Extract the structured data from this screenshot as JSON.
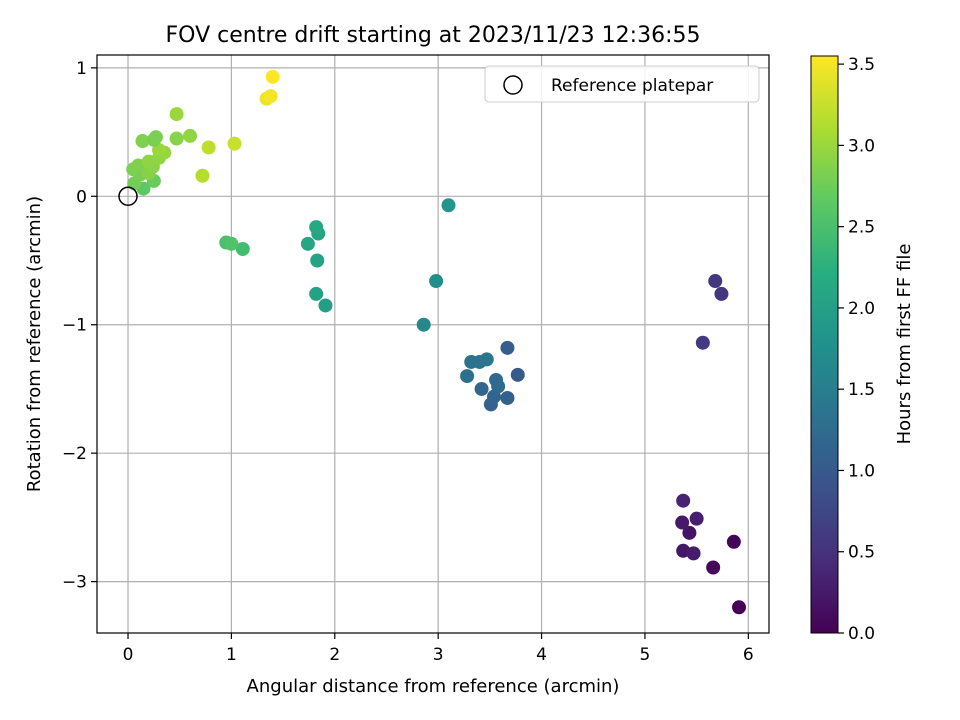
{
  "chart_data": {
    "type": "scatter",
    "title": "FOV centre drift starting at 2023/11/23 12:36:55",
    "xlabel": "Angular distance from reference (arcmin)",
    "ylabel": "Rotation from reference (arcmin)",
    "xlim": [
      -0.3,
      6.2
    ],
    "ylim": [
      -3.4,
      1.1
    ],
    "xticks": [
      0,
      1,
      2,
      3,
      4,
      5,
      6
    ],
    "yticks": [
      -3,
      -2,
      -1,
      0,
      1
    ],
    "xtick_labels": [
      "0",
      "1",
      "2",
      "3",
      "4",
      "5",
      "6"
    ],
    "ytick_labels": [
      "−3",
      "−2",
      "−1",
      "0",
      "1"
    ],
    "grid": true,
    "legend": {
      "label": "Reference platepar",
      "placement": "top-right"
    },
    "reference_point": {
      "x": 0,
      "y": 0
    },
    "colorbar": {
      "label": "Hours from first FF file",
      "colormap": "viridis",
      "range": [
        0,
        3.55
      ],
      "ticks": [
        0,
        0.5,
        1,
        1.5,
        2,
        2.5,
        3,
        3.5
      ],
      "tick_labels": [
        "0.0",
        "0.5",
        "1.0",
        "1.5",
        "2.0",
        "2.5",
        "3.0",
        "3.5"
      ]
    },
    "points": [
      {
        "x": 5.91,
        "y": -3.2,
        "c": 0.02
      },
      {
        "x": 5.66,
        "y": -2.89,
        "c": 0.08
      },
      {
        "x": 5.86,
        "y": -2.69,
        "c": 0.05
      },
      {
        "x": 5.37,
        "y": -2.76,
        "c": 0.22
      },
      {
        "x": 5.47,
        "y": -2.78,
        "c": 0.28
      },
      {
        "x": 5.43,
        "y": -2.62,
        "c": 0.18
      },
      {
        "x": 5.36,
        "y": -2.54,
        "c": 0.25
      },
      {
        "x": 5.5,
        "y": -2.51,
        "c": 0.3
      },
      {
        "x": 5.37,
        "y": -2.37,
        "c": 0.35
      },
      {
        "x": 5.56,
        "y": -1.14,
        "c": 0.6
      },
      {
        "x": 5.74,
        "y": -0.76,
        "c": 0.55
      },
      {
        "x": 5.68,
        "y": -0.66,
        "c": 0.58
      },
      {
        "x": 3.67,
        "y": -1.18,
        "c": 1.05
      },
      {
        "x": 3.77,
        "y": -1.39,
        "c": 1.0
      },
      {
        "x": 3.67,
        "y": -1.57,
        "c": 1.08
      },
      {
        "x": 3.51,
        "y": -1.62,
        "c": 1.12
      },
      {
        "x": 3.54,
        "y": -1.56,
        "c": 1.15
      },
      {
        "x": 3.42,
        "y": -1.5,
        "c": 1.18
      },
      {
        "x": 3.56,
        "y": -1.43,
        "c": 1.2
      },
      {
        "x": 3.58,
        "y": -1.48,
        "c": 1.22
      },
      {
        "x": 3.28,
        "y": -1.4,
        "c": 1.3
      },
      {
        "x": 3.32,
        "y": -1.29,
        "c": 1.32
      },
      {
        "x": 3.4,
        "y": -1.29,
        "c": 1.35
      },
      {
        "x": 3.47,
        "y": -1.27,
        "c": 1.38
      },
      {
        "x": 2.86,
        "y": -1.0,
        "c": 1.65
      },
      {
        "x": 2.98,
        "y": -0.66,
        "c": 1.75
      },
      {
        "x": 3.1,
        "y": -0.07,
        "c": 1.85
      },
      {
        "x": 1.91,
        "y": -0.85,
        "c": 1.98
      },
      {
        "x": 1.82,
        "y": -0.76,
        "c": 2.02
      },
      {
        "x": 1.83,
        "y": -0.5,
        "c": 2.05
      },
      {
        "x": 1.74,
        "y": -0.37,
        "c": 2.1
      },
      {
        "x": 1.84,
        "y": -0.29,
        "c": 2.08
      },
      {
        "x": 1.82,
        "y": -0.24,
        "c": 2.12
      },
      {
        "x": 1.11,
        "y": -0.41,
        "c": 2.45
      },
      {
        "x": 0.95,
        "y": -0.36,
        "c": 2.5
      },
      {
        "x": 1.0,
        "y": -0.37,
        "c": 2.55
      },
      {
        "x": 0.15,
        "y": 0.06,
        "c": 2.65
      },
      {
        "x": 0.25,
        "y": 0.12,
        "c": 2.72
      },
      {
        "x": 0.06,
        "y": 0.1,
        "c": 2.78
      },
      {
        "x": 0.12,
        "y": 0.17,
        "c": 2.8
      },
      {
        "x": 0.05,
        "y": 0.21,
        "c": 2.82
      },
      {
        "x": 0.1,
        "y": 0.24,
        "c": 2.85
      },
      {
        "x": 0.2,
        "y": 0.18,
        "c": 2.88
      },
      {
        "x": 0.24,
        "y": 0.23,
        "c": 2.9
      },
      {
        "x": 0.2,
        "y": 0.27,
        "c": 2.93
      },
      {
        "x": 0.3,
        "y": 0.3,
        "c": 2.95
      },
      {
        "x": 0.35,
        "y": 0.34,
        "c": 2.98
      },
      {
        "x": 0.3,
        "y": 0.36,
        "c": 3.0
      },
      {
        "x": 0.14,
        "y": 0.43,
        "c": 2.85
      },
      {
        "x": 0.25,
        "y": 0.44,
        "c": 2.8
      },
      {
        "x": 0.27,
        "y": 0.46,
        "c": 2.82
      },
      {
        "x": 0.47,
        "y": 0.45,
        "c": 2.9
      },
      {
        "x": 0.6,
        "y": 0.47,
        "c": 2.95
      },
      {
        "x": 0.47,
        "y": 0.64,
        "c": 3.0
      },
      {
        "x": 0.72,
        "y": 0.16,
        "c": 3.15
      },
      {
        "x": 0.78,
        "y": 0.38,
        "c": 3.2
      },
      {
        "x": 1.03,
        "y": 0.41,
        "c": 3.25
      },
      {
        "x": 1.34,
        "y": 0.76,
        "c": 3.45
      },
      {
        "x": 1.38,
        "y": 0.78,
        "c": 3.5
      },
      {
        "x": 1.4,
        "y": 0.93,
        "c": 3.55
      }
    ]
  }
}
